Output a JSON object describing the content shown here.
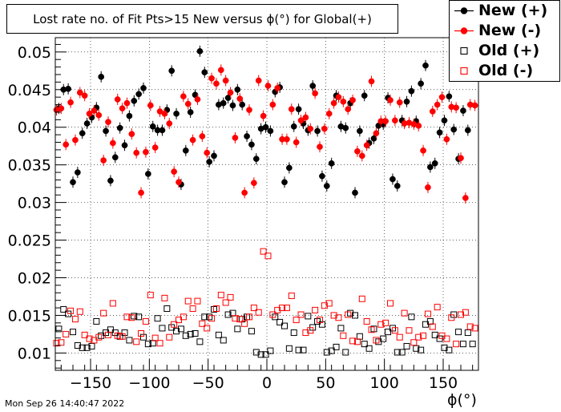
{
  "title": "Lost rate no. of Fit Pts>15 New versus ϕ(°) for Global(+)",
  "timestamp": "Mon Sep 26 14:40:47 2022",
  "chart_data": {
    "type": "scatter",
    "xlabel": "ϕ(°)",
    "ylabel": "",
    "xlim": [
      -180,
      180
    ],
    "ylim": [
      0.0077,
      0.0519
    ],
    "y_ticks": [
      "0.01",
      "0.015",
      "0.02",
      "0.025",
      "0.03",
      "0.035",
      "0.04",
      "0.045",
      "0.05"
    ],
    "y_tick_values": [
      0.01,
      0.015,
      0.02,
      0.025,
      0.03,
      0.035,
      0.04,
      0.045,
      0.05
    ],
    "x_ticks": [
      "−150",
      "−100",
      "−50",
      "0",
      "50",
      "100",
      "150"
    ],
    "x_tick_values": [
      -150,
      -100,
      -50,
      0,
      50,
      100,
      150
    ],
    "grid": "dotted",
    "legend_position": "top-right",
    "series": [
      {
        "name": "New (+)",
        "color": "#000000",
        "marker": "filled-circle",
        "x": [
          -177,
          -173,
          -169,
          -165,
          -161,
          -157,
          -153,
          -149,
          -145,
          -141,
          -137,
          -133,
          -129,
          -125,
          -121,
          -117,
          -113,
          -109,
          -105,
          -101,
          -97,
          -93,
          -89,
          -85,
          -81,
          -77,
          -73,
          -69,
          -65,
          -61,
          -57,
          -53,
          -49,
          -45,
          -41,
          -37,
          -33,
          -29,
          -25,
          -21,
          -17,
          -13,
          -9,
          -5,
          -1,
          3,
          7,
          11,
          15,
          19,
          23,
          27,
          31,
          35,
          39,
          43,
          47,
          51,
          55,
          59,
          63,
          67,
          71,
          75,
          79,
          83,
          87,
          91,
          95,
          99,
          103,
          107,
          111,
          115,
          119,
          123,
          127,
          131,
          135,
          139,
          143,
          147,
          151,
          155,
          159,
          163,
          167,
          171,
          175
        ],
        "y": [
          0.0425,
          0.045,
          0.0451,
          0.0327,
          0.034,
          0.0392,
          0.0405,
          0.0413,
          0.0426,
          0.0467,
          0.0395,
          0.0329,
          0.036,
          0.0399,
          0.0376,
          0.0415,
          0.0435,
          0.0444,
          0.0452,
          0.0338,
          0.0401,
          0.0396,
          0.0396,
          0.0423,
          0.0475,
          0.0418,
          0.0324,
          0.0369,
          0.042,
          0.0443,
          0.0501,
          0.0473,
          0.0354,
          0.0362,
          0.043,
          0.0432,
          0.0439,
          0.0429,
          0.045,
          0.043,
          0.0388,
          0.0377,
          0.0358,
          0.0398,
          0.04,
          0.0395,
          0.0447,
          0.0453,
          0.0327,
          0.0346,
          0.0401,
          0.0424,
          0.0405,
          0.0396,
          0.0455,
          0.0395,
          0.0335,
          0.0322,
          0.0352,
          0.0442,
          0.0401,
          0.0399,
          0.0432,
          0.0313,
          0.0395,
          0.0442,
          0.0379,
          0.0385,
          0.0402,
          0.0404,
          0.0439,
          0.0331,
          0.0322,
          0.0409,
          0.0434,
          0.0448,
          0.0408,
          0.0458,
          0.0482,
          0.0347,
          0.0352,
          0.0393,
          0.0409,
          0.0441,
          0.0397,
          0.0358,
          0.0422,
          0.0396,
          0.0468
        ]
      },
      {
        "name": "New (-)",
        "color": "#ff0000",
        "marker": "filled-circle",
        "x": [
          -179,
          -175,
          -171,
          -167,
          -163,
          -159,
          -155,
          -151,
          -147,
          -143,
          -139,
          -135,
          -131,
          -127,
          -123,
          -119,
          -115,
          -111,
          -107,
          -103,
          -99,
          -95,
          -91,
          -87,
          -83,
          -79,
          -75,
          -71,
          -67,
          -63,
          -59,
          -55,
          -51,
          -47,
          -43,
          -39,
          -35,
          -31,
          -27,
          -23,
          -19,
          -15,
          -11,
          -7,
          -3,
          1,
          5,
          9,
          13,
          17,
          21,
          25,
          29,
          33,
          37,
          41,
          45,
          49,
          53,
          57,
          61,
          65,
          69,
          73,
          77,
          81,
          85,
          89,
          93,
          97,
          101,
          105,
          109,
          113,
          117,
          121,
          125,
          129,
          133,
          137,
          141,
          145,
          149,
          153,
          157,
          161,
          165,
          169,
          173,
          177
        ],
        "y": [
          0.0423,
          0.0425,
          0.0377,
          0.0433,
          0.0383,
          0.0446,
          0.0442,
          0.0418,
          0.0422,
          0.0416,
          0.0356,
          0.0407,
          0.0379,
          0.0437,
          0.0425,
          0.0432,
          0.0391,
          0.0366,
          0.0313,
          0.0367,
          0.0429,
          0.0373,
          0.0421,
          0.0418,
          0.0405,
          0.0341,
          0.0327,
          0.0441,
          0.0431,
          0.0383,
          0.0437,
          0.0388,
          0.0366,
          0.0465,
          0.0458,
          0.0476,
          0.0462,
          0.0446,
          0.0386,
          0.0438,
          0.0313,
          0.0423,
          0.0326,
          0.0462,
          0.0415,
          0.0455,
          0.043,
          0.0452,
          0.0384,
          0.0384,
          0.0424,
          0.038,
          0.0409,
          0.0413,
          0.0398,
          0.0445,
          0.0374,
          0.0398,
          0.0418,
          0.0432,
          0.044,
          0.0434,
          0.0424,
          0.0436,
          0.0368,
          0.0362,
          0.0376,
          0.0461,
          0.0392,
          0.0408,
          0.0408,
          0.0436,
          0.0409,
          0.0433,
          0.0405,
          0.0406,
          0.0404,
          0.0402,
          0.0369,
          0.032,
          0.0421,
          0.043,
          0.044,
          0.0384,
          0.0427,
          0.0426,
          0.0359,
          0.0306,
          0.043,
          0.0429
        ]
      },
      {
        "name": "Old (+)",
        "color": "#000000",
        "marker": "open-square",
        "x": [
          -177,
          -173,
          -169,
          -165,
          -161,
          -157,
          -153,
          -149,
          -145,
          -141,
          -137,
          -133,
          -129,
          -125,
          -121,
          -117,
          -113,
          -109,
          -105,
          -101,
          -97,
          -93,
          -89,
          -85,
          -81,
          -77,
          -73,
          -69,
          -65,
          -61,
          -57,
          -53,
          -49,
          -45,
          -41,
          -37,
          -33,
          -29,
          -25,
          -21,
          -17,
          -13,
          -9,
          -5,
          -1,
          3,
          7,
          11,
          15,
          19,
          23,
          27,
          31,
          35,
          39,
          43,
          47,
          51,
          55,
          59,
          63,
          67,
          71,
          75,
          79,
          83,
          87,
          91,
          95,
          99,
          103,
          107,
          111,
          115,
          119,
          123,
          127,
          131,
          135,
          139,
          143,
          147,
          151,
          155,
          159,
          163,
          167,
          171,
          175
        ],
        "y": [
          0.0132,
          0.0158,
          0.0152,
          0.0128,
          0.011,
          0.0107,
          0.0107,
          0.0109,
          0.0142,
          0.0123,
          0.0127,
          0.0131,
          0.0127,
          0.0122,
          0.0127,
          0.0117,
          0.0149,
          0.0148,
          0.0121,
          0.0112,
          0.0113,
          0.0146,
          0.0133,
          0.0159,
          0.0134,
          0.0129,
          0.0132,
          0.0123,
          0.0125,
          0.0126,
          0.0115,
          0.0148,
          0.0148,
          0.0158,
          0.0124,
          0.0117,
          0.0151,
          0.0153,
          0.0132,
          0.0145,
          0.0148,
          0.0129,
          0.0101,
          0.0098,
          0.0098,
          0.0103,
          0.0148,
          0.0141,
          0.0136,
          0.0106,
          0.0127,
          0.0104,
          0.0104,
          0.0149,
          0.0134,
          0.0142,
          0.0138,
          0.0101,
          0.0103,
          0.0108,
          0.0133,
          0.0101,
          0.0153,
          0.015,
          0.0122,
          0.0112,
          0.0106,
          0.0132,
          0.0115,
          0.0119,
          0.0128,
          0.0133,
          0.0101,
          0.0101,
          0.0109,
          0.0148,
          0.0106,
          0.0104,
          0.0138,
          0.0142,
          0.0124,
          0.0119,
          0.0107,
          0.0104,
          0.0151,
          0.0128,
          0.0112,
          0.0127,
          0.0112
        ]
      },
      {
        "name": "Old (-)",
        "color": "#ff0000",
        "marker": "open-square",
        "x": [
          -179,
          -175,
          -171,
          -167,
          -163,
          -159,
          -155,
          -151,
          -147,
          -143,
          -139,
          -135,
          -131,
          -127,
          -123,
          -119,
          -115,
          -111,
          -107,
          -103,
          -99,
          -95,
          -91,
          -87,
          -83,
          -79,
          -75,
          -71,
          -67,
          -63,
          -59,
          -55,
          -51,
          -47,
          -43,
          -39,
          -35,
          -31,
          -27,
          -23,
          -19,
          -15,
          -11,
          -7,
          -3,
          1,
          5,
          9,
          13,
          17,
          21,
          25,
          29,
          33,
          37,
          41,
          45,
          49,
          53,
          57,
          61,
          65,
          69,
          73,
          77,
          81,
          85,
          89,
          93,
          97,
          101,
          105,
          109,
          113,
          117,
          121,
          125,
          129,
          133,
          137,
          141,
          145,
          149,
          153,
          157,
          161,
          165,
          169,
          173,
          177
        ],
        "y": [
          0.0113,
          0.0114,
          0.0125,
          0.0156,
          0.0145,
          0.0155,
          0.0124,
          0.0119,
          0.0117,
          0.0121,
          0.0153,
          0.0124,
          0.0166,
          0.0123,
          0.0122,
          0.0148,
          0.0147,
          0.0115,
          0.0126,
          0.0142,
          0.0177,
          0.012,
          0.0113,
          0.0173,
          0.0121,
          0.0138,
          0.0144,
          0.0148,
          0.0169,
          0.0159,
          0.0169,
          0.0139,
          0.0133,
          0.0146,
          0.0159,
          0.0177,
          0.0167,
          0.0174,
          0.0146,
          0.0145,
          0.0139,
          0.0148,
          0.016,
          0.0154,
          0.0235,
          0.0229,
          0.0151,
          0.0157,
          0.016,
          0.016,
          0.0176,
          0.0144,
          0.0151,
          0.0127,
          0.013,
          0.0157,
          0.0144,
          0.0163,
          0.0166,
          0.015,
          0.0147,
          0.0123,
          0.0151,
          0.0116,
          0.0115,
          0.0172,
          0.0142,
          0.0131,
          0.0117,
          0.0138,
          0.014,
          0.0166,
          0.013,
          0.0121,
          0.0153,
          0.013,
          0.0114,
          0.0121,
          0.0123,
          0.0152,
          0.0135,
          0.0161,
          0.0123,
          0.0119,
          0.0147,
          0.0112,
          0.0151,
          0.0154,
          0.0135,
          0.0133
        ]
      }
    ]
  }
}
